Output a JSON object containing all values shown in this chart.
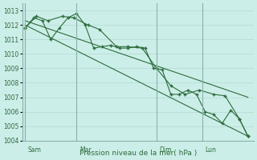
{
  "bg_color": "#cceee8",
  "grid_color": "#aad4ce",
  "line_color": "#2d6b3c",
  "vline_color": "#8ab0ac",
  "xlabel": "Pression niveau de la mer( hPa )",
  "ylim": [
    1004,
    1013.5
  ],
  "yticks": [
    1004,
    1005,
    1006,
    1007,
    1008,
    1009,
    1010,
    1011,
    1012,
    1013
  ],
  "ytick_fontsize": 5.5,
  "xlabel_fontsize": 6.5,
  "day_labels": [
    "Sam",
    "Mar",
    "Dim",
    "Lun"
  ],
  "vline_positions": [
    0,
    18,
    46,
    62
  ],
  "label_offsets": [
    1,
    1,
    1,
    1
  ],
  "xlim": [
    -1,
    80
  ],
  "series_wiggly": {
    "x": [
      0,
      3,
      6,
      9,
      12,
      15,
      18,
      21,
      24,
      27,
      30,
      33,
      36,
      39,
      42,
      45,
      48,
      51,
      54,
      57,
      60,
      63,
      66,
      69,
      72,
      75,
      78
    ],
    "y": [
      1011.8,
      1012.5,
      1012.3,
      1011.0,
      1011.8,
      1012.5,
      1012.8,
      1012.0,
      1010.4,
      1010.5,
      1010.6,
      1010.4,
      1010.4,
      1010.5,
      1010.4,
      1009.0,
      1008.9,
      1007.2,
      1007.2,
      1007.5,
      1007.2,
      1006.0,
      1005.8,
      1005.2,
      1006.1,
      1005.5,
      1004.3
    ],
    "marker": "+"
  },
  "series_straight1": {
    "x": [
      0,
      78
    ],
    "y": [
      1012.3,
      1007.0
    ],
    "marker": "none"
  },
  "series_straight2": {
    "x": [
      0,
      78
    ],
    "y": [
      1012.0,
      1004.3
    ],
    "marker": "none"
  },
  "series_mid": {
    "x": [
      0,
      4,
      8,
      13,
      17,
      22,
      26,
      32,
      36,
      41,
      46,
      51,
      56,
      61,
      66,
      70,
      75,
      78
    ],
    "y": [
      1011.8,
      1012.6,
      1012.3,
      1012.6,
      1012.5,
      1012.0,
      1011.7,
      1010.5,
      1010.5,
      1010.4,
      1009.0,
      1007.8,
      1007.2,
      1007.5,
      1007.2,
      1007.1,
      1005.5,
      1004.3
    ],
    "marker": "+"
  }
}
